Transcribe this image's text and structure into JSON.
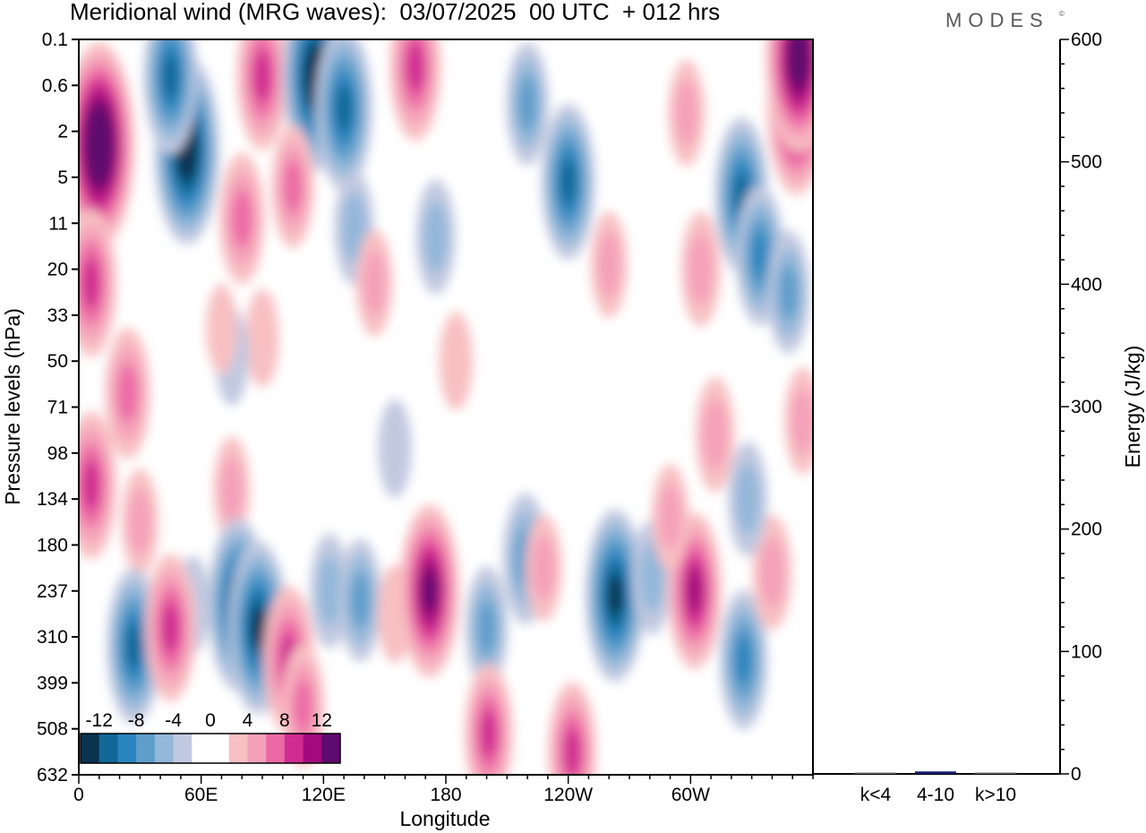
{
  "header": {
    "title": "Meridional wind (MRG waves):  03/07/2025  00 UTC  + 012 hrs",
    "brand": "MODES",
    "brand_mark": "©"
  },
  "chart_data": [
    {
      "type": "heatmap",
      "title": "Meridional wind (MRG waves):  03/07/2025  00 UTC  + 012 hrs",
      "xlabel": "Longitude",
      "ylabel": "Pressure levels (hPa)",
      "x_ticks": [
        "0",
        "60E",
        "120E",
        "180",
        "120W",
        "60W"
      ],
      "x_tick_values": [
        0,
        60,
        120,
        180,
        240,
        300
      ],
      "xlim": [
        0,
        360
      ],
      "y_ticks": [
        "0.1",
        "0.6",
        "2",
        "5",
        "11",
        "20",
        "33",
        "50",
        "71",
        "98",
        "134",
        "180",
        "237",
        "310",
        "399",
        "508",
        "632"
      ],
      "colorbar": {
        "labels": [
          "-12",
          "-8",
          "-4",
          "0",
          "4",
          "8",
          "12"
        ],
        "levels": [
          -14,
          -12,
          -10,
          -8,
          -6,
          -4,
          -2,
          2,
          4,
          6,
          8,
          10,
          12,
          14
        ],
        "colors": [
          "#0a3350",
          "#116897",
          "#2a85be",
          "#5f9ecb",
          "#93b7d9",
          "#c1c9e0",
          "#ffffff",
          "#ffffff",
          "#f8c0c2",
          "#f4a0b9",
          "#ec6aa4",
          "#d02c92",
          "#a30b7c",
          "#5e0a6e"
        ]
      },
      "features": [
        {
          "lon": 10,
          "lev": 2.3,
          "value": 16
        },
        {
          "lon": 6,
          "lev": 5.3,
          "value": 9
        },
        {
          "lon": 24,
          "lev": 7.7,
          "value": 7
        },
        {
          "lon": 53,
          "lev": 2.4,
          "value": -14
        },
        {
          "lon": 45,
          "lev": 0.8,
          "value": -10
        },
        {
          "lon": 90,
          "lev": 0.8,
          "value": 9
        },
        {
          "lon": 116,
          "lev": 0.8,
          "value": -14
        },
        {
          "lon": 130,
          "lev": 1.5,
          "value": -11
        },
        {
          "lon": 165,
          "lev": 0.6,
          "value": 9
        },
        {
          "lon": 80,
          "lev": 3.9,
          "value": 7
        },
        {
          "lon": 105,
          "lev": 3.2,
          "value": 6
        },
        {
          "lon": 135,
          "lev": 4.1,
          "value": -5
        },
        {
          "lon": 175,
          "lev": 4.3,
          "value": -5
        },
        {
          "lon": 240,
          "lev": 3.1,
          "value": -10
        },
        {
          "lon": 220,
          "lev": 1.4,
          "value": -6
        },
        {
          "lon": 325,
          "lev": 3.4,
          "value": -10
        },
        {
          "lon": 352,
          "lev": 1.5,
          "value": 12
        },
        {
          "lon": 353,
          "lev": 0.4,
          "value": 14
        },
        {
          "lon": 298,
          "lev": 1.6,
          "value": 4
        },
        {
          "lon": 334,
          "lev": 4.7,
          "value": -8
        },
        {
          "lon": 348,
          "lev": 5.5,
          "value": -6
        },
        {
          "lon": 305,
          "lev": 5.0,
          "value": 5
        },
        {
          "lon": 145,
          "lev": 5.3,
          "value": 4
        },
        {
          "lon": 260,
          "lev": 4.9,
          "value": 4
        },
        {
          "lon": 90,
          "lev": 6.5,
          "value": 3
        },
        {
          "lon": 185,
          "lev": 7.0,
          "value": 3
        },
        {
          "lon": 75,
          "lev": 6.9,
          "value": -3
        },
        {
          "lon": 75,
          "lev": 9.8,
          "value": 4
        },
        {
          "lon": 6,
          "lev": 9.7,
          "value": 9
        },
        {
          "lon": 30,
          "lev": 10.5,
          "value": 4
        },
        {
          "lon": 56,
          "lev": 12.3,
          "value": -3
        },
        {
          "lon": 27,
          "lev": 13.2,
          "value": -10
        },
        {
          "lon": 45,
          "lev": 12.8,
          "value": 9
        },
        {
          "lon": 78,
          "lev": 12.3,
          "value": -12
        },
        {
          "lon": 88,
          "lev": 12.8,
          "value": -12
        },
        {
          "lon": 103,
          "lev": 13.5,
          "value": 9
        },
        {
          "lon": 110,
          "lev": 14.5,
          "value": 6
        },
        {
          "lon": 123,
          "lev": 12.0,
          "value": -5
        },
        {
          "lon": 138,
          "lev": 12.2,
          "value": -6
        },
        {
          "lon": 155,
          "lev": 12.5,
          "value": 3
        },
        {
          "lon": 172,
          "lev": 12.0,
          "value": 12
        },
        {
          "lon": 200,
          "lev": 12.8,
          "value": -6
        },
        {
          "lon": 201,
          "lev": 15.1,
          "value": 8
        },
        {
          "lon": 219,
          "lev": 11.3,
          "value": -7
        },
        {
          "lon": 228,
          "lev": 11.5,
          "value": 4
        },
        {
          "lon": 242,
          "lev": 15.5,
          "value": 8
        },
        {
          "lon": 263,
          "lev": 12.1,
          "value": -12
        },
        {
          "lon": 281,
          "lev": 11.7,
          "value": -5
        },
        {
          "lon": 302,
          "lev": 12.0,
          "value": 10
        },
        {
          "lon": 326,
          "lev": 13.5,
          "value": -8
        },
        {
          "lon": 340,
          "lev": 11.6,
          "value": 5
        },
        {
          "lon": 328,
          "lev": 10.0,
          "value": -5
        },
        {
          "lon": 312,
          "lev": 8.6,
          "value": 5
        },
        {
          "lon": 355,
          "lev": 8.3,
          "value": 4
        },
        {
          "lon": 290,
          "lev": 10.4,
          "value": 4
        },
        {
          "lon": 70,
          "lev": 6.3,
          "value": 2
        },
        {
          "lon": 155,
          "lev": 8.9,
          "value": -3
        }
      ]
    },
    {
      "type": "bar",
      "ylabel": "Energy (J/kg)",
      "categories": [
        "k<4",
        "4-10",
        "k>10"
      ],
      "values": [
        0.3,
        2,
        0.3
      ],
      "ylim": [
        0,
        600
      ],
      "y_ticks": [
        "0",
        "100",
        "200",
        "300",
        "400",
        "500",
        "600"
      ],
      "y_tick_values": [
        0,
        100,
        200,
        300,
        400,
        500,
        600
      ]
    }
  ]
}
